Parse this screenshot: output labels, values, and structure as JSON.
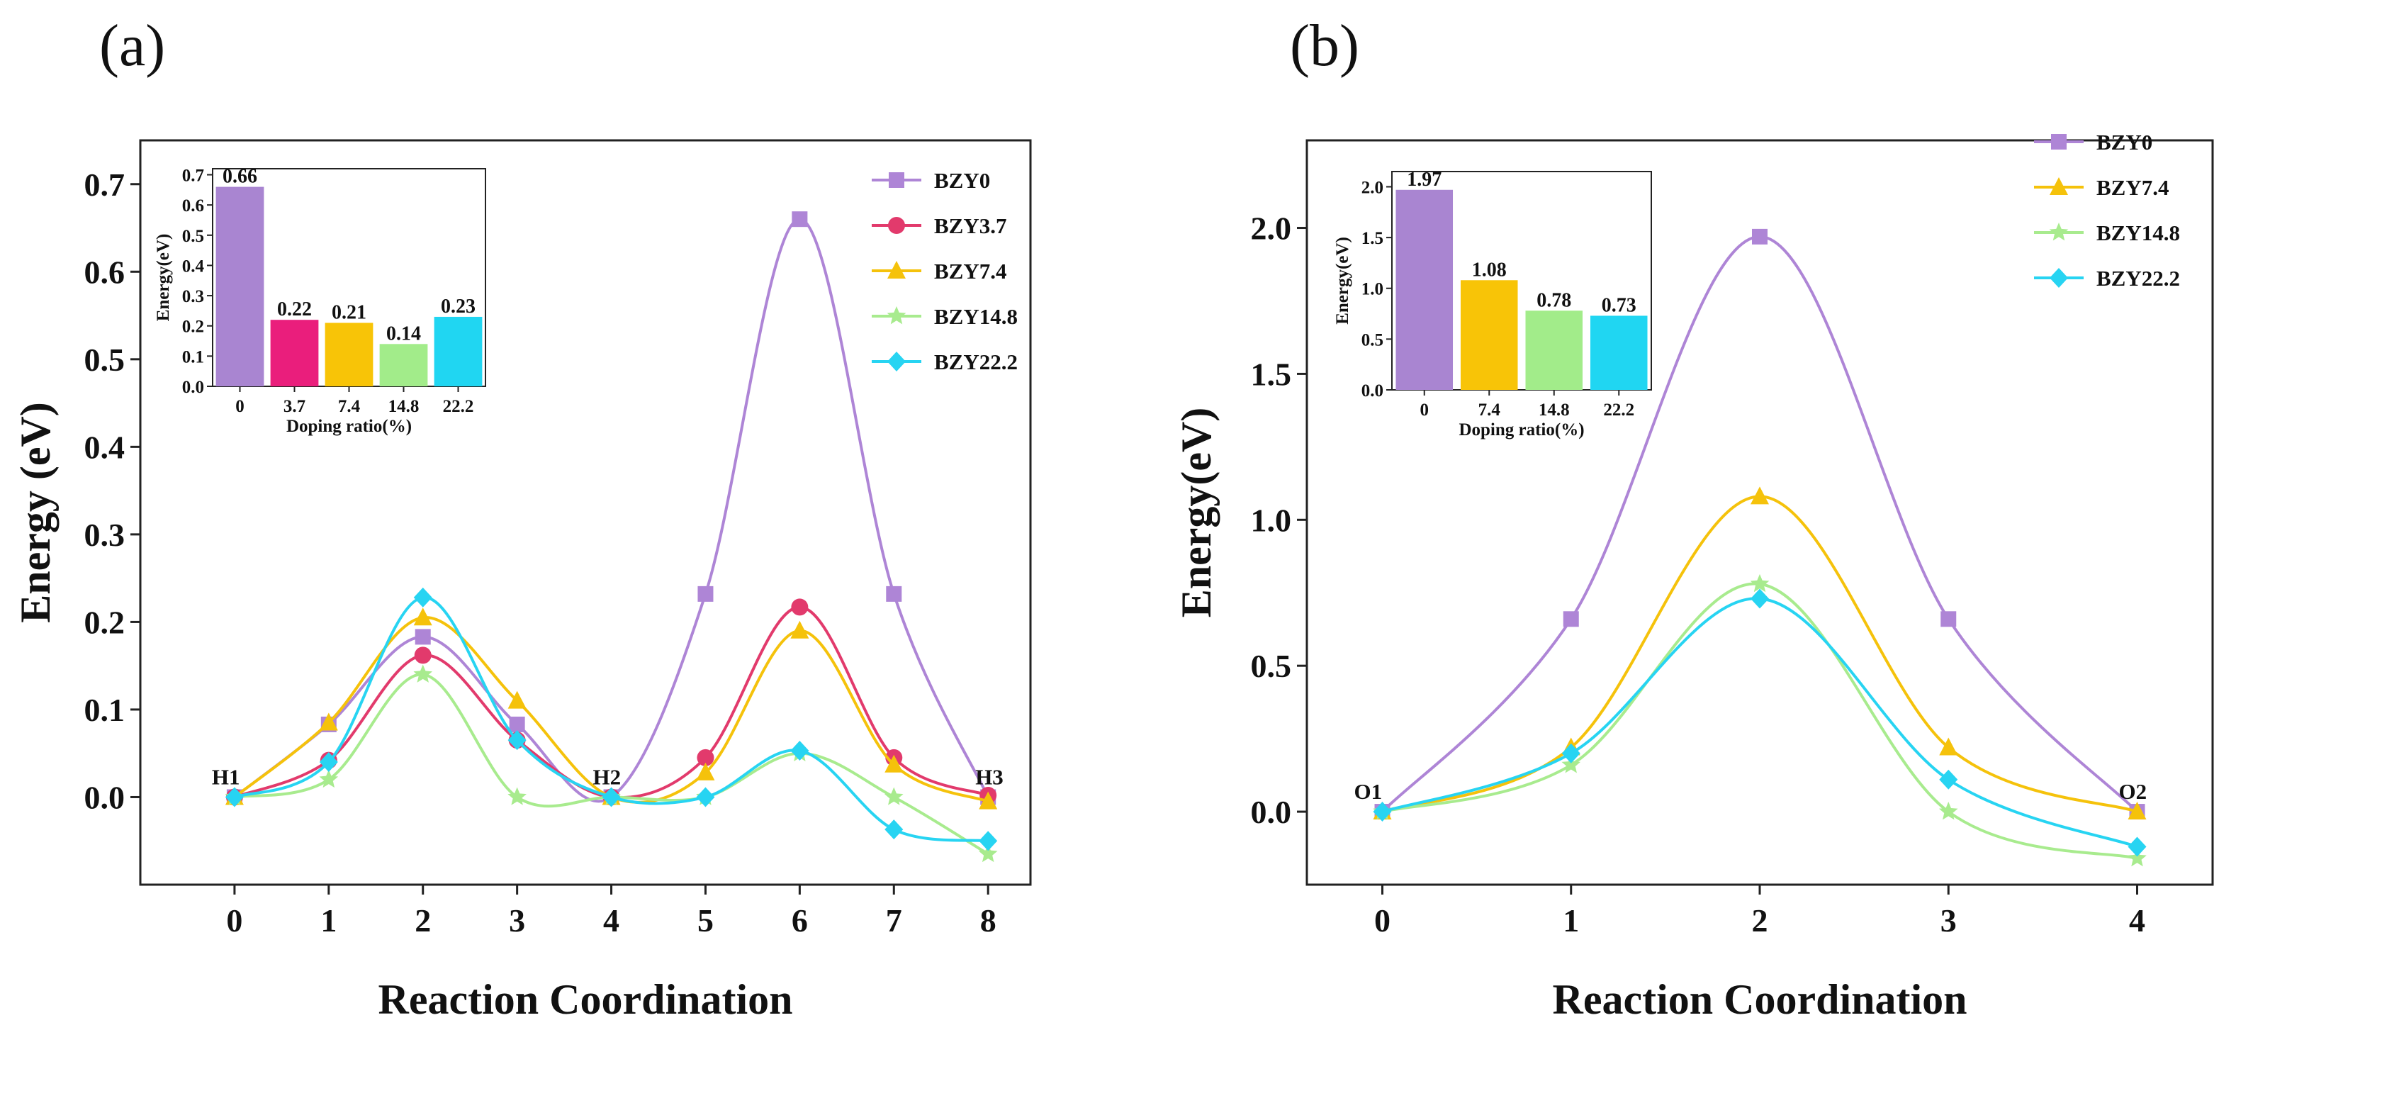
{
  "chart_data": [
    {
      "panel_label": "(a)",
      "type": "line",
      "xlabel": "Reaction Coordination",
      "ylabel": "Energy (eV)",
      "x": [
        0,
        1,
        2,
        3,
        4,
        5,
        6,
        7,
        8
      ],
      "xlim": [
        -1,
        8.45
      ],
      "ylim": [
        -0.1,
        0.75
      ],
      "yticks": [
        0.0,
        0.1,
        0.2,
        0.3,
        0.4,
        0.5,
        0.6,
        0.7
      ],
      "ytick_labels": [
        "0.0",
        "0.1",
        "0.2",
        "0.3",
        "0.4",
        "0.5",
        "0.6",
        "0.7"
      ],
      "point_labels": [
        {
          "x": 0,
          "y": 0.0,
          "text": "H1"
        },
        {
          "x": 4,
          "y": 0.0,
          "text": "H2"
        },
        {
          "x": 8,
          "y": 0.0,
          "text": "H3"
        }
      ],
      "legend_position": "top-right",
      "series": [
        {
          "name": "BZY0",
          "color": "#ae85d6",
          "marker": "square",
          "values": [
            0,
            0.083,
            0.183,
            0.083,
            0,
            0.232,
            0.66,
            0.232,
            0
          ]
        },
        {
          "name": "BZY3.7",
          "color": "#e23a6c",
          "marker": "circle",
          "values": [
            0,
            0.042,
            0.162,
            0.065,
            0,
            0.045,
            0.217,
            0.045,
            0.002
          ]
        },
        {
          "name": "BZY7.4",
          "color": "#f5c20b",
          "marker": "triangle",
          "values": [
            0,
            0.085,
            0.205,
            0.11,
            0,
            0.028,
            0.19,
            0.037,
            -0.005
          ]
        },
        {
          "name": "BZY14.8",
          "color": "#a8eb8e",
          "marker": "star",
          "values": [
            0,
            0.02,
            0.14,
            0,
            0,
            0,
            0.05,
            0,
            -0.065
          ]
        },
        {
          "name": "BZY22.2",
          "color": "#27d4f2",
          "marker": "diamond",
          "values": [
            0,
            0.04,
            0.228,
            0.065,
            0,
            0,
            0.053,
            -0.037,
            -0.05
          ]
        }
      ],
      "inset": {
        "type": "bar",
        "xlabel": "Doping ratio(%)",
        "ylabel": "Energy(eV)",
        "categories": [
          "0",
          "3.7",
          "7.4",
          "14.8",
          "22.2"
        ],
        "values": [
          0.66,
          0.22,
          0.21,
          0.14,
          0.23
        ],
        "value_labels": [
          "0.66",
          "0.22",
          "0.21",
          "0.14",
          "0.23"
        ],
        "colors": [
          "#a985d1",
          "#ea1e7c",
          "#f8c407",
          "#a2ec8a",
          "#20d6f2"
        ],
        "ylim": [
          0,
          0.72
        ],
        "yticks": [
          0,
          0.1,
          0.2,
          0.3,
          0.4,
          0.5,
          0.6,
          0.7
        ],
        "ytick_labels": [
          "0.0",
          "0.1",
          "0.2",
          "0.3",
          "0.4",
          "0.5",
          "0.6",
          "0.7"
        ]
      }
    },
    {
      "panel_label": "(b)",
      "type": "line",
      "xlabel": "Reaction Coordination",
      "ylabel": "Energy(eV)",
      "x": [
        0,
        1,
        2,
        3,
        4
      ],
      "xlim": [
        -0.4,
        4.4
      ],
      "ylim": [
        -0.25,
        2.3
      ],
      "yticks": [
        0.0,
        0.5,
        1.0,
        1.5,
        2.0
      ],
      "ytick_labels": [
        "0.0",
        "0.5",
        "1.0",
        "1.5",
        "2.0"
      ],
      "point_labels": [
        {
          "x": 0,
          "y": 0.0,
          "text": "O1"
        },
        {
          "x": 4,
          "y": 0.0,
          "text": "O2"
        }
      ],
      "legend_position": "top-right",
      "series": [
        {
          "name": "BZY0",
          "color": "#ae85d6",
          "marker": "square",
          "values": [
            0,
            0.66,
            1.97,
            0.66,
            0
          ]
        },
        {
          "name": "BZY7.4",
          "color": "#f5c20b",
          "marker": "triangle",
          "values": [
            0,
            0.22,
            1.08,
            0.22,
            0
          ]
        },
        {
          "name": "BZY14.8",
          "color": "#a8eb8e",
          "marker": "star",
          "values": [
            0,
            0.16,
            0.78,
            0,
            -0.16
          ]
        },
        {
          "name": "BZY22.2",
          "color": "#27d4f2",
          "marker": "diamond",
          "values": [
            0,
            0.2,
            0.73,
            0.11,
            -0.12
          ]
        }
      ],
      "inset": {
        "type": "bar",
        "xlabel": "Doping ratio(%)",
        "ylabel": "Energy(eV)",
        "categories": [
          "0",
          "7.4",
          "14.8",
          "22.2"
        ],
        "values": [
          1.97,
          1.08,
          0.78,
          0.73
        ],
        "value_labels": [
          "1.97",
          "1.08",
          "0.78",
          "0.73"
        ],
        "colors": [
          "#a985d1",
          "#f8c407",
          "#a2ec8a",
          "#20d6f2"
        ],
        "ylim": [
          0,
          2.15
        ],
        "yticks": [
          0,
          0.5,
          1.0,
          1.5,
          2.0
        ],
        "ytick_labels": [
          "0.0",
          "0.5",
          "1.0",
          "1.5",
          "2.0"
        ]
      }
    }
  ]
}
